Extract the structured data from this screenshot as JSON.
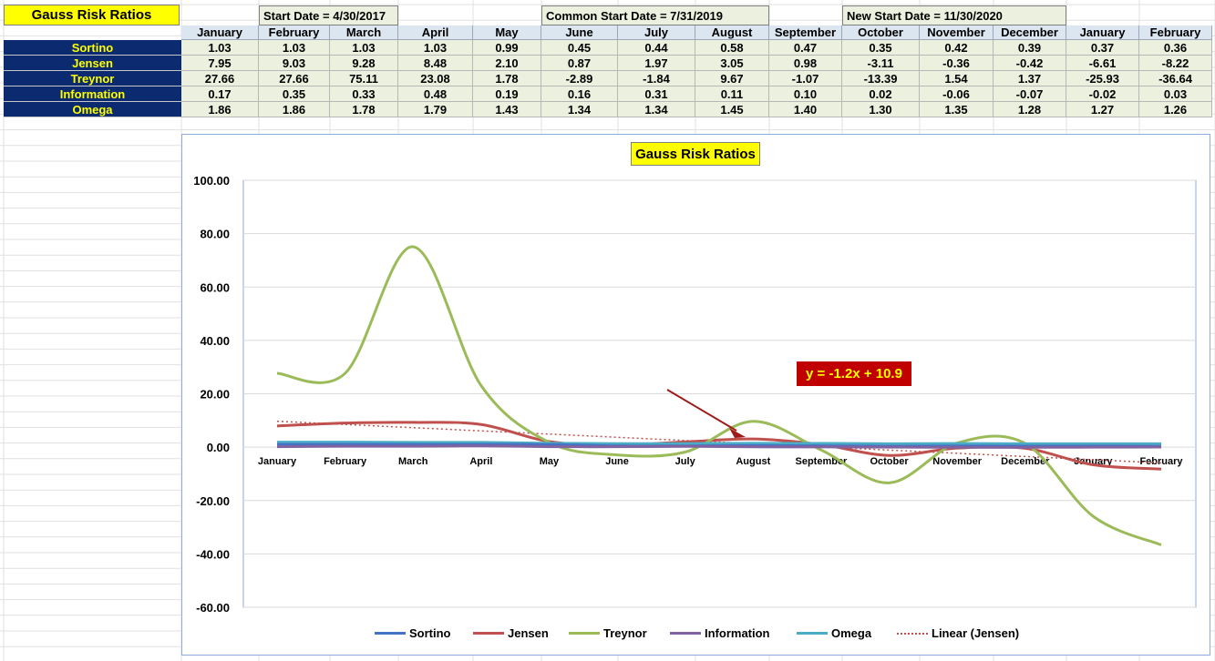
{
  "sheet": {
    "title": "Gauss Risk Ratios",
    "start_date": "Start Date = 4/30/2017",
    "common_start_date": "Common Start Date = 7/31/2019",
    "new_start_date": "New Start Date = 11/30/2020",
    "months": [
      "January",
      "February",
      "March",
      "April",
      "May",
      "June",
      "July",
      "August",
      "September",
      "October",
      "November",
      "December",
      "January",
      "February"
    ],
    "rows": [
      {
        "label": "Sortino",
        "values": [
          "1.03",
          "1.03",
          "1.03",
          "1.03",
          "0.99",
          "0.45",
          "0.44",
          "0.58",
          "0.47",
          "0.35",
          "0.42",
          "0.39",
          "0.37",
          "0.36"
        ]
      },
      {
        "label": "Jensen",
        "values": [
          "7.95",
          "9.03",
          "9.28",
          "8.48",
          "2.10",
          "0.87",
          "1.97",
          "3.05",
          "0.98",
          "-3.11",
          "-0.36",
          "-0.42",
          "-6.61",
          "-8.22"
        ]
      },
      {
        "label": "Treynor",
        "values": [
          "27.66",
          "27.66",
          "75.11",
          "23.08",
          "1.78",
          "-2.89",
          "-1.84",
          "9.67",
          "-1.07",
          "-13.39",
          "1.54",
          "1.37",
          "-25.93",
          "-36.64"
        ]
      },
      {
        "label": "Information",
        "values": [
          "0.17",
          "0.35",
          "0.33",
          "0.48",
          "0.19",
          "0.16",
          "0.31",
          "0.11",
          "0.10",
          "0.02",
          "-0.06",
          "-0.07",
          "-0.02",
          "0.03"
        ]
      },
      {
        "label": "Omega",
        "values": [
          "1.86",
          "1.86",
          "1.78",
          "1.79",
          "1.43",
          "1.34",
          "1.34",
          "1.45",
          "1.40",
          "1.30",
          "1.35",
          "1.28",
          "1.27",
          "1.26"
        ]
      }
    ]
  },
  "chart_data": {
    "type": "line",
    "title": "Gauss Risk Ratios",
    "xlabel": "",
    "ylabel": "",
    "categories": [
      "January",
      "February",
      "March",
      "April",
      "May",
      "June",
      "July",
      "August",
      "September",
      "October",
      "November",
      "December",
      "January",
      "February"
    ],
    "ylim": [
      -60,
      100
    ],
    "yticks": [
      100,
      80,
      60,
      40,
      20,
      0,
      -20,
      -40,
      -60
    ],
    "ytick_labels": [
      "100.00",
      "80.00",
      "60.00",
      "40.00",
      "20.00",
      "0.00",
      "-20.00",
      "-40.00",
      "-60.00"
    ],
    "grid": true,
    "smoothed": true,
    "legend_position": "bottom",
    "series": [
      {
        "name": "Sortino",
        "color": "#4472c4",
        "values": [
          1.03,
          1.03,
          1.03,
          1.03,
          0.99,
          0.45,
          0.44,
          0.58,
          0.47,
          0.35,
          0.42,
          0.39,
          0.37,
          0.36
        ]
      },
      {
        "name": "Jensen",
        "color": "#c0504d",
        "values": [
          7.95,
          9.03,
          9.28,
          8.48,
          2.1,
          0.87,
          1.97,
          3.05,
          0.98,
          -3.11,
          -0.36,
          -0.42,
          -6.61,
          -8.22
        ]
      },
      {
        "name": "Treynor",
        "color": "#9bbb59",
        "values": [
          27.66,
          27.66,
          75.11,
          23.08,
          1.78,
          -2.89,
          -1.84,
          9.67,
          -1.07,
          -13.39,
          1.54,
          1.37,
          -25.93,
          -36.64
        ]
      },
      {
        "name": "Information",
        "color": "#8064a2",
        "values": [
          0.17,
          0.35,
          0.33,
          0.48,
          0.19,
          0.16,
          0.31,
          0.11,
          0.1,
          0.02,
          -0.06,
          -0.07,
          -0.02,
          0.03
        ]
      },
      {
        "name": "Omega",
        "color": "#4bacc6",
        "values": [
          1.86,
          1.86,
          1.78,
          1.79,
          1.43,
          1.34,
          1.34,
          1.45,
          1.4,
          1.3,
          1.35,
          1.28,
          1.27,
          1.26
        ]
      }
    ],
    "trendline": {
      "name": "Linear (Jensen)",
      "of_series": "Jensen",
      "slope": -1.2,
      "intercept": 10.9,
      "color": "#c0504d",
      "style": "dotted"
    },
    "annotation": {
      "text": "y = -1.2x + 10.9",
      "color_bg": "#c00000",
      "color_text": "#ffff00",
      "arrow_color": "#9e1b1b"
    }
  }
}
